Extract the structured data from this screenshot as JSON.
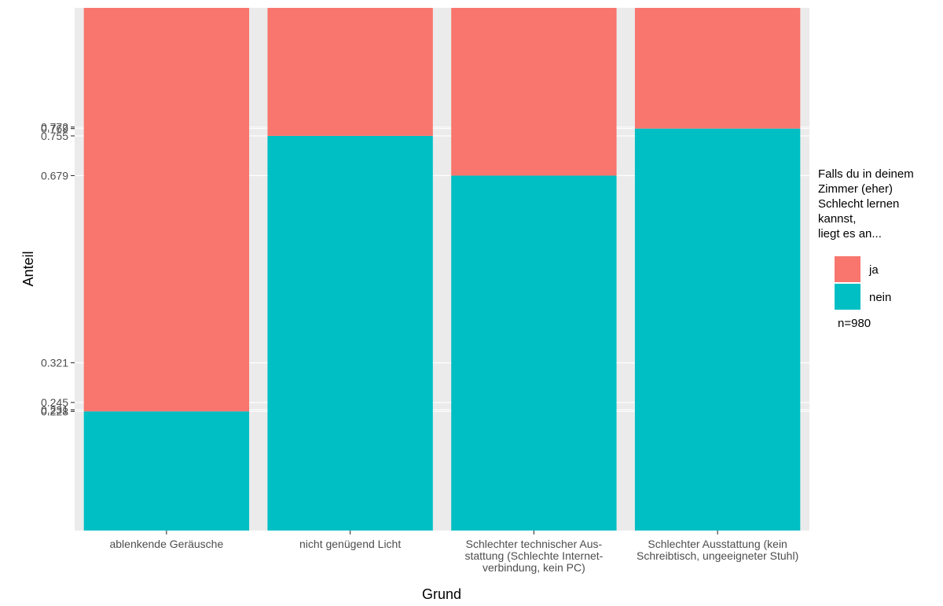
{
  "chart_data": {
    "type": "bar",
    "stacked": true,
    "normalized": true,
    "xlabel": "Grund",
    "ylabel": "Anteil",
    "categories": [
      [
        "ablenkende Geräusche"
      ],
      [
        "nicht genügend Licht"
      ],
      [
        "Schlechter technischer Aus-",
        "stattung (Schlechte Internet-",
        "verbindung, kein PC)"
      ],
      [
        "Schlechter Ausstattung (kein",
        "Schreibtisch, ungeeigneter Stuhl)"
      ]
    ],
    "y_tick_labels": [
      "0.228",
      "0.231",
      "0.245",
      "0.321",
      "0.679",
      "0.755",
      "0.769",
      "0.772"
    ],
    "series": [
      {
        "name": "nein",
        "color": "#00BFC4",
        "values": [
          0.228,
          0.755,
          0.679,
          0.769
        ]
      },
      {
        "name": "ja",
        "color": "#F8766D",
        "values": [
          0.772,
          0.245,
          0.321,
          0.231
        ]
      }
    ],
    "legend": {
      "title": [
        "Falls du in deinem",
        "Zimmer (eher)",
        "Schlecht lernen",
        "kannst,",
        "liegt es an..."
      ],
      "entries": [
        "ja",
        "nein"
      ],
      "note": "n=980",
      "position": "right"
    },
    "grid": true,
    "panel_background": "#EBEBEB"
  }
}
